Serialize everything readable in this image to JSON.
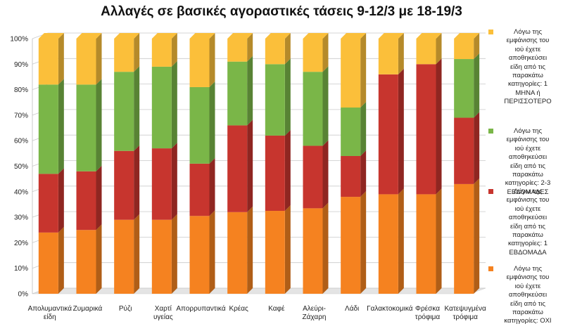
{
  "colors": {
    "series": [
      "#f58220",
      "#c7352e",
      "#7ab648",
      "#fbbf3a"
    ],
    "grid": "#c9c9c9",
    "axis_text": "#222222"
  },
  "chart_data": {
    "type": "bar",
    "stacked": true,
    "title": "Αλλαγές σε βασικές αγοραστικές τάσεις 9-12/3 με 18-19/3",
    "categories": [
      [
        "Απολυμαντικά",
        "είδη"
      ],
      [
        "Ζυμαρικά"
      ],
      [
        "Ρύζι"
      ],
      [
        "Χαρτί",
        "υγείας"
      ],
      [
        "Απορρυπαντικά"
      ],
      [
        "Κρέας"
      ],
      [
        "Καφέ"
      ],
      [
        "Αλεύρι-",
        "Ζάχαρη"
      ],
      [
        "Λάδι"
      ],
      [
        "Γαλακτοκομικά"
      ],
      [
        "Φρέσκα",
        "τρόφιμα"
      ],
      [
        "Κατεψυγμένα",
        "τρόφιμα"
      ]
    ],
    "yticks": [
      "0%",
      "10%",
      "20%",
      "30%",
      "40%",
      "50%",
      "60%",
      "70%",
      "80%",
      "90%",
      "100%"
    ],
    "ylim": [
      0,
      100
    ],
    "grid": true,
    "legend_position": "right",
    "series": [
      {
        "name": [
          "Λόγω της",
          "εμφάνισης του",
          "ιού έχετε",
          "αποθηκεύσει",
          "είδη από τις",
          "παρακάτω",
          "κατηγορίες: ΟΧΙ"
        ],
        "values": [
          24,
          25,
          29,
          29,
          30.5,
          32,
          32.5,
          33.5,
          38,
          39,
          39,
          43
        ]
      },
      {
        "name": [
          "Λόγω της",
          "εμφάνισης του",
          "ιού έχετε",
          "αποθηκεύσει",
          "είδη από τις",
          "παρακάτω",
          "κατηγορίες: 1",
          "ΕΒΔΟΜΑΔΑ"
        ],
        "values": [
          23,
          23,
          27,
          28,
          20.5,
          34,
          29.5,
          24.5,
          16,
          47,
          51,
          26
        ]
      },
      {
        "name": [
          "Λόγω της",
          "εμφάνισης του",
          "ιού έχετε",
          "αποθηκεύσει",
          "είδη από τις",
          "παρακάτω",
          "κατηγορίες: 2-3",
          "ΕΒΔΟΜΑΔΕΣ"
        ],
        "values": [
          35,
          34,
          31,
          32,
          30,
          25,
          28,
          29,
          19,
          0,
          0,
          23
        ]
      },
      {
        "name": [
          "Λόγω της",
          "εμφάνισης του",
          "ιού έχετε",
          "αποθηκεύσει",
          "είδη από τις",
          "παρακάτω",
          "κατηγορίες: 1",
          "ΜΗΝΑ ή",
          "ΠΕΡΙΣΣΟΤΕΡΟ"
        ],
        "values": [
          18,
          18,
          13,
          11,
          19,
          9,
          10,
          13,
          27,
          14,
          10,
          8
        ]
      }
    ]
  }
}
